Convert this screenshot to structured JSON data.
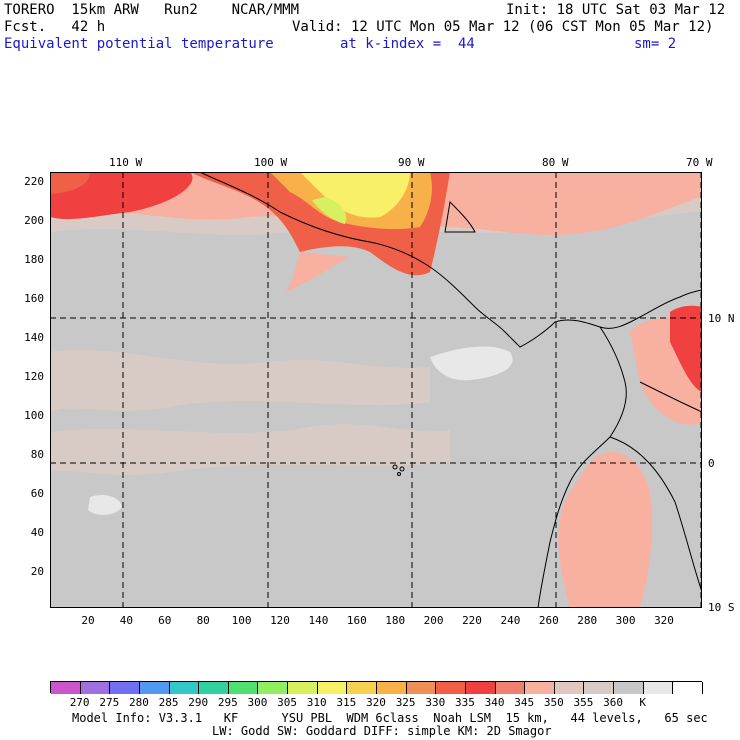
{
  "header": {
    "line1_left": "TORERO  15km ARW   Run2    NCAR/MMM",
    "line1_right": "Init: 18 UTC Sat 03 Mar 12",
    "line2_left": "Fcst.   42 h",
    "line2_right": "Valid: 12 UTC Mon 05 Mar 12 (06 CST Mon 05 Mar 12)",
    "field_name": "Equivalent potential temperature",
    "level": "at k-index =  44",
    "smoothing": "sm= 2"
  },
  "map": {
    "top_lon_labels": [
      "110 W",
      "100 W",
      "90 W",
      "80 W",
      "70 W"
    ],
    "right_lat_labels": [
      "10 N",
      "0",
      "10 S"
    ],
    "left_grid_labels": [
      "220",
      "200",
      "180",
      "160",
      "140",
      "120",
      "100",
      "80",
      "60",
      "40",
      "20"
    ],
    "bottom_grid_labels": [
      "20",
      "40",
      "60",
      "80",
      "100",
      "120",
      "140",
      "160",
      "180",
      "200",
      "220",
      "240",
      "260",
      "280",
      "300",
      "320"
    ]
  },
  "colorbar": {
    "colors": [
      "#cc55cc",
      "#a070e0",
      "#7070f0",
      "#5098f0",
      "#30c8c8",
      "#30d0a0",
      "#50e070",
      "#90ee60",
      "#d8f060",
      "#f8f068",
      "#f8d050",
      "#f8b048",
      "#f09058",
      "#f06048",
      "#f04040",
      "#f08070",
      "#f8b0a0",
      "#e0c8c0",
      "#d8cbc6",
      "#c8c8c8",
      "#e8e8e8",
      "#ffffff"
    ],
    "labels": [
      "270",
      "275",
      "280",
      "285",
      "290",
      "295",
      "300",
      "305",
      "310",
      "315",
      "320",
      "325",
      "330",
      "335",
      "340",
      "345",
      "350",
      "355",
      "360",
      "K"
    ]
  },
  "footer": {
    "line1": "Model Info: V3.3.1   KF      YSU PBL  WDM 6class  Noah LSM  15 km,   44 levels,   65 sec",
    "line2": "LW: Godd SW: Goddard DIFF: simple KM: 2D Smagor"
  }
}
